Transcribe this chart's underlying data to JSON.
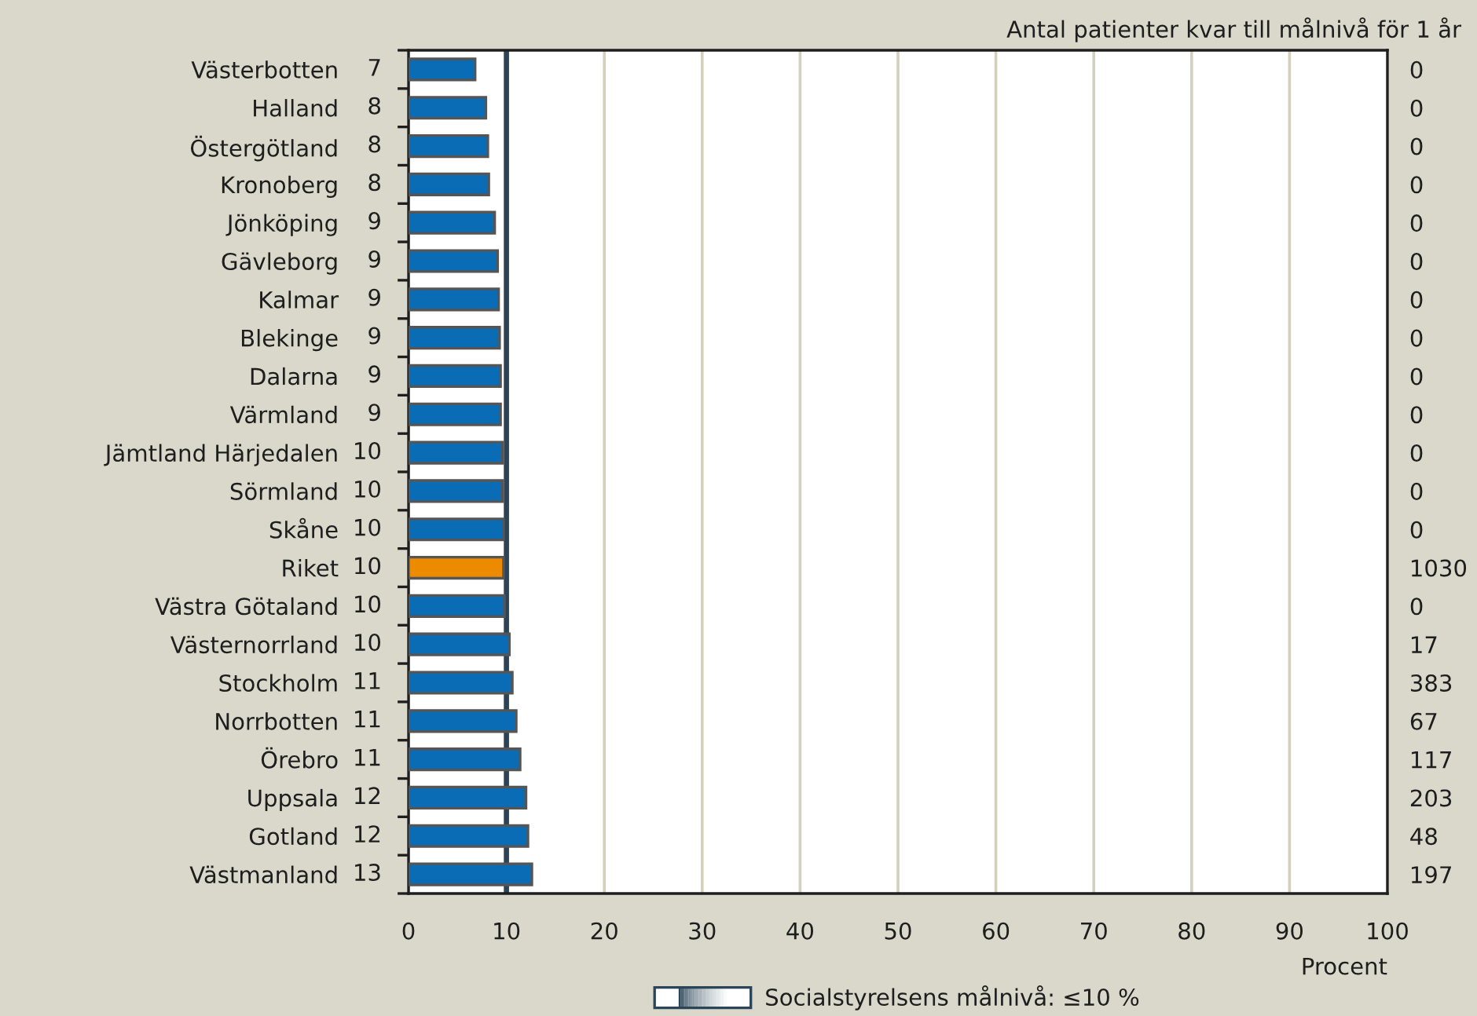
{
  "chart_data": {
    "type": "bar",
    "orientation": "horizontal",
    "categories": [
      "Västerbotten",
      "Halland",
      "Östergötland",
      "Kronoberg",
      "Jönköping",
      "Gävleborg",
      "Kalmar",
      "Blekinge",
      "Dalarna",
      "Värmland",
      "Jämtland Härjedalen",
      "Sörmland",
      "Skåne",
      "Riket",
      "Västra Götaland",
      "Västernorrland",
      "Stockholm",
      "Norrbotten",
      "Örebro",
      "Uppsala",
      "Gotland",
      "Västmanland"
    ],
    "values": [
      6.8,
      7.9,
      8.1,
      8.2,
      8.8,
      9.1,
      9.2,
      9.3,
      9.4,
      9.4,
      9.6,
      9.6,
      9.7,
      9.7,
      9.8,
      10.3,
      10.6,
      11.0,
      11.4,
      12.0,
      12.2,
      12.6
    ],
    "value_labels": [
      "7",
      "8",
      "8",
      "8",
      "9",
      "9",
      "9",
      "9",
      "9",
      "9",
      "10",
      "10",
      "10",
      "10",
      "10",
      "10",
      "11",
      "11",
      "11",
      "12",
      "12",
      "13"
    ],
    "colors": [
      "#0a6cb4",
      "#0a6cb4",
      "#0a6cb4",
      "#0a6cb4",
      "#0a6cb4",
      "#0a6cb4",
      "#0a6cb4",
      "#0a6cb4",
      "#0a6cb4",
      "#0a6cb4",
      "#0a6cb4",
      "#0a6cb4",
      "#0a6cb4",
      "#ec8a00",
      "#0a6cb4",
      "#0a6cb4",
      "#0a6cb4",
      "#0a6cb4",
      "#0a6cb4",
      "#0a6cb4",
      "#0a6cb4",
      "#0a6cb4"
    ],
    "y2label": "Antal patienter kvar till målnivå för 1 år",
    "y2_categories": [
      "0",
      "0",
      "0",
      "0",
      "0",
      "0",
      "0",
      "0",
      "0",
      "0",
      "0",
      "0",
      "0",
      "1030",
      "0",
      "17",
      "383",
      "67",
      "117",
      "203",
      "48",
      "197"
    ],
    "xlabel": "Procent",
    "xlim": [
      0,
      100
    ],
    "xticks": [
      0,
      10,
      20,
      30,
      40,
      50,
      60,
      70,
      80,
      90,
      100
    ],
    "grid": "x",
    "ref_lines": [
      {
        "axis": "x",
        "value": 10,
        "label": "Socialstyrelsens målnivå: ≤10 %",
        "color": "#2b4557"
      }
    ],
    "legend": "bottom"
  }
}
